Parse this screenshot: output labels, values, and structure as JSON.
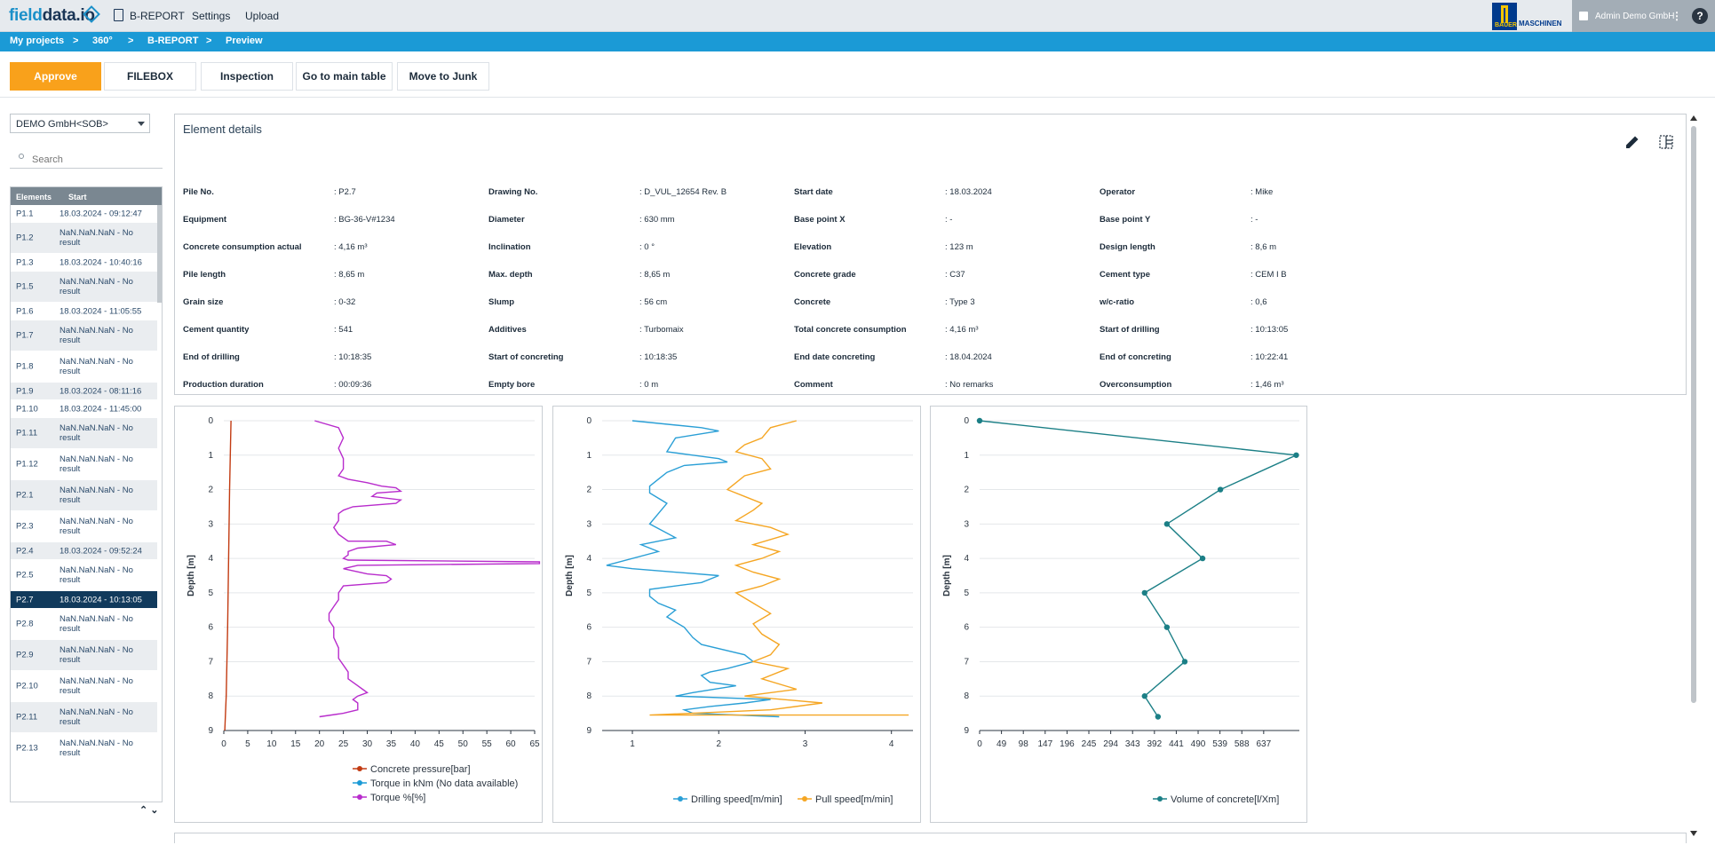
{
  "app": {
    "logo_a": "field",
    "logo_b": "data.io",
    "user": "Admin Demo GmbH",
    "help": "?",
    "partner_top": "BAUER",
    "partner_bottom": "MASCHINEN"
  },
  "nav": {
    "breport": "B-REPORT",
    "settings": "Settings",
    "upload": "Upload"
  },
  "breadcrumb": [
    "My projects",
    ">",
    "360°",
    ">",
    "B-REPORT",
    ">",
    "Preview"
  ],
  "actions": {
    "approve": "Approve",
    "filebox": "FILEBOX",
    "inspection": "Inspection",
    "main_table": "Go to main table",
    "junk": "Move to Junk"
  },
  "sidebar": {
    "project": "DEMO GmbH<SOB>",
    "search_placeholder": "Search",
    "col_elements": "Elements",
    "col_start": "Start",
    "rows": [
      {
        "id": "P1.1",
        "start": "18.03.2024 - 09:12:47"
      },
      {
        "id": "P1.2",
        "start": "NaN.NaN.NaN - No result"
      },
      {
        "id": "P1.3",
        "start": "18.03.2024 - 10:40:16"
      },
      {
        "id": "P1.5",
        "start": "NaN.NaN.NaN - No result"
      },
      {
        "id": "P1.6",
        "start": "18.03.2024 - 11:05:55"
      },
      {
        "id": "P1.7",
        "start": "NaN.NaN.NaN - No result"
      },
      {
        "id": "P1.8",
        "start": "NaN.NaN.NaN - No result"
      },
      {
        "id": "P1.9",
        "start": "18.03.2024 - 08:11:16"
      },
      {
        "id": "P1.10",
        "start": "18.03.2024 - 11:45:00"
      },
      {
        "id": "P1.11",
        "start": "NaN.NaN.NaN - No result"
      },
      {
        "id": "P1.12",
        "start": "NaN.NaN.NaN - No result"
      },
      {
        "id": "P2.1",
        "start": "NaN.NaN.NaN - No result"
      },
      {
        "id": "P2.3",
        "start": "NaN.NaN.NaN - No result"
      },
      {
        "id": "P2.4",
        "start": "18.03.2024 - 09:52:24"
      },
      {
        "id": "P2.5",
        "start": "NaN.NaN.NaN - No result"
      },
      {
        "id": "P2.7",
        "start": "18.03.2024 - 10:13:05"
      },
      {
        "id": "P2.8",
        "start": "NaN.NaN.NaN - No result"
      },
      {
        "id": "P2.9",
        "start": "NaN.NaN.NaN - No result"
      },
      {
        "id": "P2.10",
        "start": "NaN.NaN.NaN - No result"
      },
      {
        "id": "P2.11",
        "start": "NaN.NaN.NaN - No result"
      },
      {
        "id": "P2.13",
        "start": "NaN.NaN.NaN - No result"
      }
    ],
    "selected": "P2.7",
    "arrows": "⌃ ⌄"
  },
  "details": {
    "title": "Element details",
    "fields": [
      [
        {
          "label": "Pile No.",
          "value": "P2.7"
        },
        {
          "label": "Drawing No.",
          "value": "D_VUL_12654 Rev. B"
        },
        {
          "label": "Start date",
          "value": "18.03.2024"
        },
        {
          "label": "Operator",
          "value": "Mike"
        }
      ],
      [
        {
          "label": "Equipment",
          "value": "BG-36-V#1234"
        },
        {
          "label": "Diameter",
          "value": "630 mm"
        },
        {
          "label": "Base point X",
          "value": "-"
        },
        {
          "label": "Base point Y",
          "value": "-"
        }
      ],
      [
        {
          "label": "Concrete consumption actual",
          "value": "4,16 m³"
        },
        {
          "label": "Inclination",
          "value": "0 °"
        },
        {
          "label": "Elevation",
          "value": "123 m"
        },
        {
          "label": "Design length",
          "value": "8,6 m"
        }
      ],
      [
        {
          "label": "Pile length",
          "value": "8,65 m"
        },
        {
          "label": "Max. depth",
          "value": "8,65 m"
        },
        {
          "label": "Concrete grade",
          "value": "C37"
        },
        {
          "label": "Cement type",
          "value": "CEM I B"
        }
      ],
      [
        {
          "label": "Grain size",
          "value": "0-32"
        },
        {
          "label": "Slump",
          "value": "56 cm"
        },
        {
          "label": "Concrete",
          "value": "Type 3"
        },
        {
          "label": "w/c-ratio",
          "value": "0,6"
        }
      ],
      [
        {
          "label": "Cement quantity",
          "value": "541"
        },
        {
          "label": "Additives",
          "value": "Turbomaix"
        },
        {
          "label": "Total concrete consumption",
          "value": "4,16 m³"
        },
        {
          "label": "Start of drilling",
          "value": "10:13:05"
        }
      ],
      [
        {
          "label": "End of drilling",
          "value": "10:18:35"
        },
        {
          "label": "Start of concreting",
          "value": "10:18:35"
        },
        {
          "label": "End date concreting",
          "value": "18.04.2024"
        },
        {
          "label": "End of concreting",
          "value": "10:22:41"
        }
      ],
      [
        {
          "label": "Production duration",
          "value": "00:09:36"
        },
        {
          "label": "Empty bore",
          "value": "0 m"
        },
        {
          "label": "Comment",
          "value": "No remarks"
        },
        {
          "label": "Overconsumption",
          "value": "1,46 m³"
        }
      ]
    ]
  },
  "colors": {
    "pressure": "#c23b12",
    "torque_knm": "#1a9ad6",
    "torque_pct": "#b82ccc",
    "drilling": "#2a9fd6",
    "pull": "#f5a623",
    "volume": "#1b7f86",
    "approve": "#f9a11b",
    "header_blue": "#1b9ad6",
    "selected_row": "#113a5c"
  },
  "chart_data": [
    {
      "type": "line",
      "orientation": "depth-vertical",
      "ylabel": "Depth [m]",
      "ylim": [
        0,
        9
      ],
      "yticks": [
        "0",
        "1",
        "2",
        "3",
        "4",
        "5",
        "6",
        "7",
        "8",
        "9"
      ],
      "xlim": [
        0,
        65
      ],
      "xticks": [
        "0",
        "5",
        "10",
        "15",
        "20",
        "25",
        "30",
        "35",
        "40",
        "45",
        "50",
        "55",
        "60",
        "65"
      ],
      "grid": true,
      "legend": "bottom",
      "series": [
        {
          "name": "Concrete pressure[bar]",
          "color": "#c23b12",
          "x": [
            1.5,
            1.2,
            1.0,
            0.8,
            0.5,
            0.2
          ],
          "y": [
            0,
            2,
            4,
            6,
            8,
            9
          ]
        },
        {
          "name": "Torque in kNm (No data available)",
          "color": "#1a9ad6",
          "x": [],
          "y": []
        },
        {
          "name": "Torque %[%]",
          "color": "#b82ccc",
          "x": [
            19,
            24,
            25,
            24,
            25,
            25,
            24,
            26,
            30,
            33,
            36,
            37,
            32,
            31,
            37,
            36,
            27,
            25,
            24,
            24,
            23,
            24,
            26,
            34,
            36,
            28,
            26,
            26,
            25,
            26,
            66,
            66,
            28,
            25,
            30,
            34,
            35,
            34,
            25,
            24,
            24,
            23,
            22,
            22,
            23,
            23,
            24,
            24,
            25,
            26,
            26,
            27,
            28,
            29,
            30,
            28,
            27,
            28,
            28,
            25,
            20
          ],
          "y": [
            0,
            0.2,
            0.5,
            0.8,
            1.1,
            1.4,
            1.6,
            1.7,
            1.8,
            1.9,
            1.95,
            2.05,
            2.1,
            2.2,
            2.3,
            2.4,
            2.5,
            2.6,
            2.7,
            2.9,
            3.1,
            3.3,
            3.5,
            3.5,
            3.6,
            3.7,
            3.8,
            3.9,
            4.0,
            4.05,
            4.1,
            4.15,
            4.2,
            4.3,
            4.45,
            4.5,
            4.6,
            4.7,
            4.8,
            5.0,
            5.2,
            5.4,
            5.6,
            5.8,
            6.0,
            6.3,
            6.6,
            6.9,
            7.1,
            7.3,
            7.5,
            7.6,
            7.7,
            7.8,
            7.9,
            8.0,
            8.1,
            8.2,
            8.4,
            8.5,
            8.6
          ]
        }
      ]
    },
    {
      "type": "line",
      "orientation": "depth-vertical",
      "ylabel": "Depth [m]",
      "ylim": [
        0,
        9
      ],
      "yticks": [
        "0",
        "1",
        "2",
        "3",
        "4",
        "5",
        "6",
        "7",
        "8",
        "9"
      ],
      "xlim": [
        0.65,
        4.25
      ],
      "xticks": [
        "1",
        "2",
        "3",
        "4"
      ],
      "grid": true,
      "legend": "bottom",
      "series": [
        {
          "name": "Drilling speed[m/min]",
          "color": "#2a9fd6",
          "x": [
            1.0,
            1.8,
            2.0,
            1.5,
            1.4,
            1.7,
            2.0,
            2.1,
            1.6,
            1.4,
            1.3,
            1.2,
            1.2,
            1.4,
            1.3,
            1.2,
            1.5,
            1.1,
            1.3,
            0.7,
            1.0,
            2.0,
            1.8,
            1.2,
            1.2,
            1.3,
            1.5,
            1.4,
            1.6,
            1.7,
            1.8,
            2.3,
            2.4,
            2.1,
            1.9,
            1.8,
            1.9,
            2.2,
            1.7,
            1.5,
            2.6,
            2.3,
            1.9,
            1.6,
            1.7,
            2.7
          ],
          "y": [
            0,
            0.2,
            0.3,
            0.5,
            0.9,
            1.0,
            1.1,
            1.2,
            1.3,
            1.5,
            1.7,
            1.9,
            2.1,
            2.4,
            2.7,
            3.0,
            3.4,
            3.6,
            3.8,
            4.2,
            4.3,
            4.5,
            4.7,
            4.9,
            5.1,
            5.3,
            5.5,
            5.7,
            6.0,
            6.3,
            6.5,
            6.8,
            7.0,
            7.2,
            7.3,
            7.4,
            7.6,
            7.7,
            7.9,
            8.0,
            8.1,
            8.2,
            8.3,
            8.4,
            8.5,
            8.6
          ]
        },
        {
          "name": "Pull speed[m/min]",
          "color": "#f5a623",
          "x": [
            2.9,
            2.6,
            2.5,
            2.3,
            2.2,
            2.5,
            2.6,
            2.3,
            2.2,
            2.1,
            2.3,
            2.5,
            2.4,
            2.2,
            2.6,
            2.8,
            2.4,
            2.7,
            2.5,
            2.2,
            2.4,
            2.7,
            2.5,
            2.2,
            2.4,
            2.6,
            2.4,
            2.5,
            2.7,
            2.6,
            2.4,
            2.8,
            2.5,
            2.9,
            2.3,
            3.2,
            2.6,
            1.2,
            4.2
          ],
          "y": [
            0,
            0.2,
            0.5,
            0.7,
            0.9,
            1.1,
            1.4,
            1.6,
            1.8,
            2.0,
            2.2,
            2.4,
            2.6,
            2.9,
            3.1,
            3.3,
            3.6,
            3.8,
            4.0,
            4.2,
            4.4,
            4.6,
            4.8,
            5.0,
            5.3,
            5.6,
            5.9,
            6.2,
            6.5,
            6.8,
            7.0,
            7.2,
            7.5,
            7.8,
            8.0,
            8.2,
            8.4,
            8.55,
            8.55
          ]
        }
      ]
    },
    {
      "type": "line",
      "orientation": "depth-vertical",
      "ylabel": "Depth [m]",
      "ylim": [
        0,
        9
      ],
      "yticks": [
        "0",
        "1",
        "2",
        "3",
        "4",
        "5",
        "6",
        "7",
        "8",
        "9"
      ],
      "xlim": [
        0,
        717
      ],
      "xticks": [
        "0",
        "49",
        "98",
        "147",
        "196",
        "245",
        "294",
        "343",
        "392",
        "441",
        "490",
        "539",
        "588",
        "637"
      ],
      "grid": true,
      "legend": "bottom",
      "series": [
        {
          "name": "Volume of concrete[l/Xm]",
          "color": "#1b7f86",
          "x": [
            0,
            710,
            540,
            420,
            500,
            370,
            420,
            460,
            370,
            400
          ],
          "y": [
            0,
            1,
            2,
            3,
            4,
            5,
            6,
            7,
            8,
            8.6
          ]
        }
      ]
    }
  ]
}
